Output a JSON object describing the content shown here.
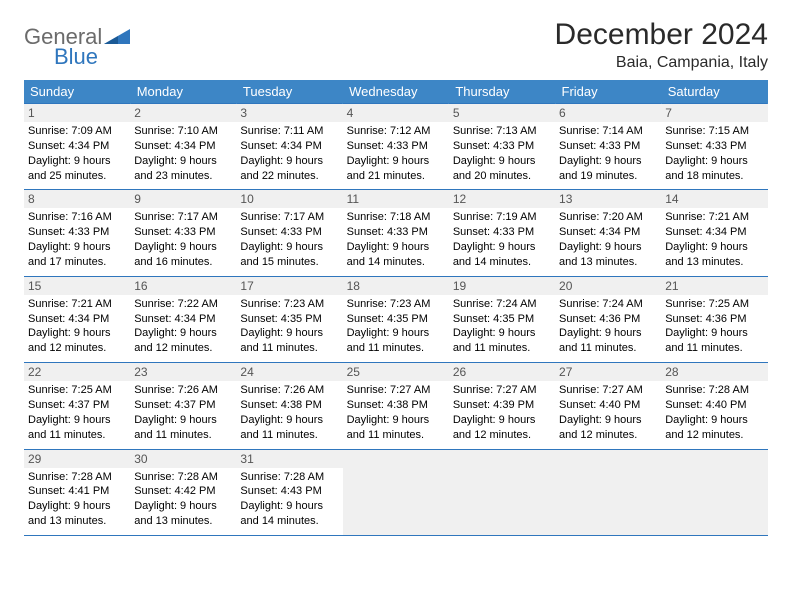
{
  "logo": {
    "general": "General",
    "blue": "Blue"
  },
  "title": "December 2024",
  "location": "Baia, Campania, Italy",
  "colors": {
    "header_bg": "#3d86c6",
    "header_fg": "#ffffff",
    "border": "#2f76bd",
    "shaded_bg": "#f0f0f0",
    "logo_gray": "#6b6b6b",
    "logo_blue": "#2f76bd"
  },
  "weekdays": [
    "Sunday",
    "Monday",
    "Tuesday",
    "Wednesday",
    "Thursday",
    "Friday",
    "Saturday"
  ],
  "weeks": [
    [
      {
        "n": "1",
        "sr": "7:09 AM",
        "ss": "4:34 PM",
        "dl": "9 hours and 25 minutes."
      },
      {
        "n": "2",
        "sr": "7:10 AM",
        "ss": "4:34 PM",
        "dl": "9 hours and 23 minutes."
      },
      {
        "n": "3",
        "sr": "7:11 AM",
        "ss": "4:34 PM",
        "dl": "9 hours and 22 minutes."
      },
      {
        "n": "4",
        "sr": "7:12 AM",
        "ss": "4:33 PM",
        "dl": "9 hours and 21 minutes."
      },
      {
        "n": "5",
        "sr": "7:13 AM",
        "ss": "4:33 PM",
        "dl": "9 hours and 20 minutes."
      },
      {
        "n": "6",
        "sr": "7:14 AM",
        "ss": "4:33 PM",
        "dl": "9 hours and 19 minutes."
      },
      {
        "n": "7",
        "sr": "7:15 AM",
        "ss": "4:33 PM",
        "dl": "9 hours and 18 minutes."
      }
    ],
    [
      {
        "n": "8",
        "sr": "7:16 AM",
        "ss": "4:33 PM",
        "dl": "9 hours and 17 minutes."
      },
      {
        "n": "9",
        "sr": "7:17 AM",
        "ss": "4:33 PM",
        "dl": "9 hours and 16 minutes."
      },
      {
        "n": "10",
        "sr": "7:17 AM",
        "ss": "4:33 PM",
        "dl": "9 hours and 15 minutes."
      },
      {
        "n": "11",
        "sr": "7:18 AM",
        "ss": "4:33 PM",
        "dl": "9 hours and 14 minutes."
      },
      {
        "n": "12",
        "sr": "7:19 AM",
        "ss": "4:33 PM",
        "dl": "9 hours and 14 minutes."
      },
      {
        "n": "13",
        "sr": "7:20 AM",
        "ss": "4:34 PM",
        "dl": "9 hours and 13 minutes."
      },
      {
        "n": "14",
        "sr": "7:21 AM",
        "ss": "4:34 PM",
        "dl": "9 hours and 13 minutes."
      }
    ],
    [
      {
        "n": "15",
        "sr": "7:21 AM",
        "ss": "4:34 PM",
        "dl": "9 hours and 12 minutes."
      },
      {
        "n": "16",
        "sr": "7:22 AM",
        "ss": "4:34 PM",
        "dl": "9 hours and 12 minutes."
      },
      {
        "n": "17",
        "sr": "7:23 AM",
        "ss": "4:35 PM",
        "dl": "9 hours and 11 minutes."
      },
      {
        "n": "18",
        "sr": "7:23 AM",
        "ss": "4:35 PM",
        "dl": "9 hours and 11 minutes."
      },
      {
        "n": "19",
        "sr": "7:24 AM",
        "ss": "4:35 PM",
        "dl": "9 hours and 11 minutes."
      },
      {
        "n": "20",
        "sr": "7:24 AM",
        "ss": "4:36 PM",
        "dl": "9 hours and 11 minutes."
      },
      {
        "n": "21",
        "sr": "7:25 AM",
        "ss": "4:36 PM",
        "dl": "9 hours and 11 minutes."
      }
    ],
    [
      {
        "n": "22",
        "sr": "7:25 AM",
        "ss": "4:37 PM",
        "dl": "9 hours and 11 minutes."
      },
      {
        "n": "23",
        "sr": "7:26 AM",
        "ss": "4:37 PM",
        "dl": "9 hours and 11 minutes."
      },
      {
        "n": "24",
        "sr": "7:26 AM",
        "ss": "4:38 PM",
        "dl": "9 hours and 11 minutes."
      },
      {
        "n": "25",
        "sr": "7:27 AM",
        "ss": "4:38 PM",
        "dl": "9 hours and 11 minutes."
      },
      {
        "n": "26",
        "sr": "7:27 AM",
        "ss": "4:39 PM",
        "dl": "9 hours and 12 minutes."
      },
      {
        "n": "27",
        "sr": "7:27 AM",
        "ss": "4:40 PM",
        "dl": "9 hours and 12 minutes."
      },
      {
        "n": "28",
        "sr": "7:28 AM",
        "ss": "4:40 PM",
        "dl": "9 hours and 12 minutes."
      }
    ],
    [
      {
        "n": "29",
        "sr": "7:28 AM",
        "ss": "4:41 PM",
        "dl": "9 hours and 13 minutes."
      },
      {
        "n": "30",
        "sr": "7:28 AM",
        "ss": "4:42 PM",
        "dl": "9 hours and 13 minutes."
      },
      {
        "n": "31",
        "sr": "7:28 AM",
        "ss": "4:43 PM",
        "dl": "9 hours and 14 minutes."
      },
      null,
      null,
      null,
      null
    ]
  ],
  "labels": {
    "sunrise": "Sunrise:",
    "sunset": "Sunset:",
    "daylight": "Daylight:"
  }
}
